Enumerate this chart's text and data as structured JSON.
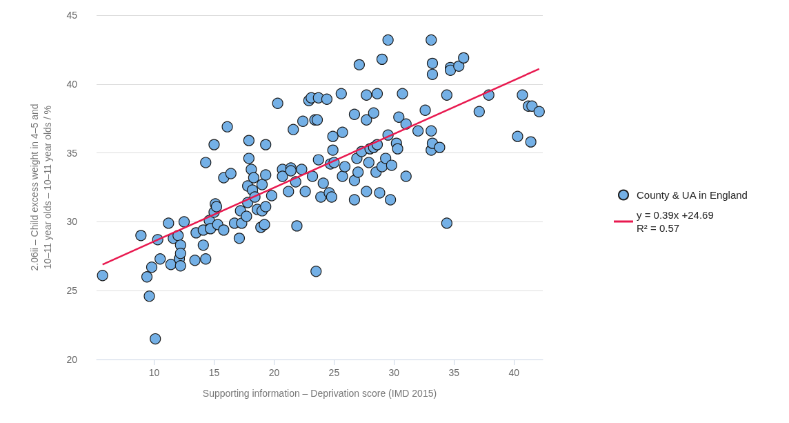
{
  "chart_data": {
    "type": "scatter",
    "xlabel": "Supporting information – Deprivation score (IMD 2015)",
    "ylabel": "2.06ii – Child excess weight in 4–5 and 10–11 year olds – 10–11 year olds / %",
    "xlim": [
      5.2,
      42.4
    ],
    "xticks": [
      10,
      15,
      20,
      25,
      30,
      35,
      40
    ],
    "ylim": [
      20,
      45
    ],
    "yticks": [
      20,
      25,
      30,
      35,
      40,
      45
    ],
    "grid": "y",
    "legend": "right",
    "marker": "circle",
    "series": [
      {
        "name": "County & UA in England",
        "color": "#74b0e6",
        "x": [
          5.7,
          8.9,
          9.4,
          9.8,
          9.6,
          10.1,
          10.3,
          10.5,
          11.2,
          11.4,
          11.6,
          12.0,
          12.1,
          12.2,
          12.2,
          12.2,
          12.5,
          13.5,
          13.4,
          14.1,
          14.1,
          14.3,
          14.3,
          14.6,
          14.7,
          15.0,
          15.0,
          15.1,
          15.2,
          15.3,
          15.8,
          15.8,
          16.1,
          16.4,
          16.7,
          17.1,
          17.2,
          17.3,
          17.7,
          17.8,
          17.8,
          17.9,
          17.9,
          18.1,
          18.2,
          18.3,
          18.4,
          18.6,
          18.9,
          19.0,
          19.0,
          19.2,
          19.3,
          19.3,
          19.3,
          19.8,
          20.3,
          20.7,
          20.7,
          21.2,
          21.4,
          21.4,
          21.6,
          21.8,
          21.9,
          22.3,
          22.4,
          22.6,
          22.9,
          23.1,
          23.2,
          23.4,
          23.6,
          23.5,
          23.7,
          23.7,
          23.9,
          24.1,
          24.4,
          24.6,
          24.7,
          24.8,
          24.9,
          24.9,
          25.0,
          25.6,
          25.7,
          25.7,
          25.9,
          26.7,
          26.7,
          26.7,
          26.9,
          27.0,
          27.1,
          27.3,
          27.7,
          27.7,
          27.7,
          27.9,
          28.0,
          28.3,
          28.3,
          28.5,
          28.6,
          28.6,
          28.8,
          29.0,
          29.0,
          29.3,
          29.5,
          29.7,
          29.5,
          29.8,
          30.2,
          30.3,
          30.4,
          30.7,
          31.0,
          31.0,
          32.0,
          32.6,
          33.1,
          33.1,
          33.1,
          33.2,
          33.2,
          33.2,
          33.8,
          34.4,
          34.4,
          34.7,
          34.7,
          35.4,
          35.8,
          37.1,
          37.9,
          40.3,
          40.7,
          41.2,
          41.5,
          41.4,
          42.1
        ],
        "values": [
          26.1,
          29.0,
          26.0,
          26.7,
          24.6,
          21.5,
          28.7,
          27.3,
          29.9,
          26.9,
          28.8,
          29.0,
          27.3,
          28.3,
          26.8,
          27.7,
          30.0,
          29.2,
          27.2,
          28.3,
          29.4,
          27.3,
          34.3,
          30.1,
          29.5,
          35.6,
          30.7,
          31.3,
          31.1,
          29.8,
          29.4,
          33.2,
          36.9,
          33.5,
          29.9,
          28.8,
          30.8,
          29.9,
          30.4,
          31.4,
          32.6,
          34.6,
          35.9,
          33.8,
          32.3,
          33.2,
          31.8,
          30.9,
          29.6,
          32.7,
          30.8,
          29.8,
          33.4,
          31.1,
          35.6,
          31.9,
          38.6,
          33.8,
          33.3,
          32.2,
          33.9,
          33.7,
          36.7,
          32.9,
          29.7,
          33.8,
          37.3,
          32.2,
          38.8,
          39.0,
          33.3,
          37.4,
          37.4,
          26.4,
          39.0,
          34.5,
          31.8,
          32.8,
          38.9,
          32.1,
          34.2,
          31.8,
          35.2,
          36.2,
          34.3,
          39.3,
          33.3,
          36.5,
          34.0,
          37.8,
          31.6,
          33.0,
          34.6,
          33.6,
          41.4,
          35.1,
          37.4,
          39.2,
          32.2,
          34.3,
          35.3,
          37.9,
          35.4,
          33.6,
          39.3,
          35.6,
          32.1,
          41.8,
          34.0,
          34.6,
          36.3,
          31.6,
          43.2,
          34.1,
          35.7,
          35.3,
          37.6,
          39.3,
          33.3,
          37.1,
          36.6,
          38.1,
          43.2,
          36.6,
          35.2,
          41.5,
          40.7,
          35.7,
          35.4,
          29.9,
          39.2,
          41.2,
          41.0,
          41.3,
          41.9,
          38.0,
          39.2,
          36.2,
          39.2,
          38.4,
          38.4,
          35.8,
          38.0
        ]
      },
      {
        "name": "y = 0.39x +24.69\nR² = 0.57",
        "type": "line",
        "color": "#e8194f",
        "x": [
          5.7,
          42.1
        ],
        "values": [
          26.9,
          41.1
        ],
        "marker": "none"
      }
    ]
  }
}
